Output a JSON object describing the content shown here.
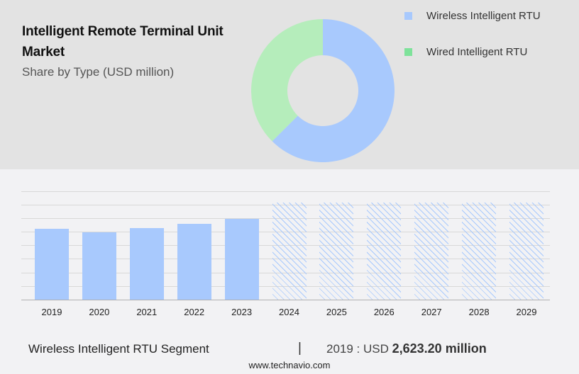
{
  "header": {
    "title": "Intelligent Remote Terminal Unit Market",
    "subtitle": "Share by Type (USD million)"
  },
  "legend": [
    {
      "label": "Wireless Intelligent RTU",
      "color": "#a8c9fd"
    },
    {
      "label": "Wired Intelligent RTU",
      "color": "#7ee29a"
    }
  ],
  "footer": {
    "segment": "Wireless Intelligent RTU Segment",
    "separator": "|",
    "value_prefix": "2019 : USD",
    "value": "2,623.20 million",
    "url": "www.technavio.com"
  },
  "chart_data": [
    {
      "type": "pie",
      "title": "Share by Type (USD million)",
      "style": "donut",
      "labels": [
        "Wireless Intelligent RTU",
        "Wired Intelligent RTU"
      ],
      "values": [
        62.5,
        37.5
      ],
      "colors": [
        "#a8c9fd",
        "#b5edbb"
      ]
    },
    {
      "type": "bar",
      "title": "Wireless Intelligent RTU Segment",
      "categories": [
        "2019",
        "2020",
        "2021",
        "2022",
        "2023",
        "2024",
        "2025",
        "2026",
        "2027",
        "2028",
        "2029"
      ],
      "values": [
        2623.2,
        2492,
        2650,
        2807,
        2990,
        null,
        null,
        null,
        null,
        null,
        null
      ],
      "forecast": [
        false,
        false,
        false,
        false,
        false,
        true,
        true,
        true,
        true,
        true,
        true
      ],
      "xlabel": "",
      "ylabel": "",
      "grid": true,
      "annotation": "2019 : USD 2,623.20 million"
    }
  ]
}
